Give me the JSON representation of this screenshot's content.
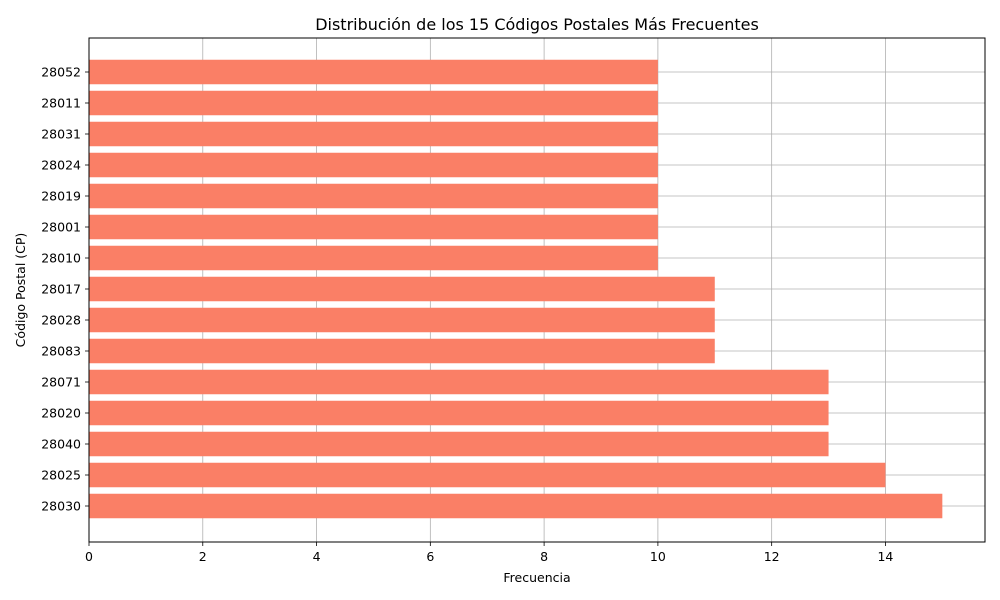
{
  "chart_data": {
    "type": "bar",
    "orientation": "horizontal",
    "title": "Distribución de los 15 Códigos Postales Más Frecuentes",
    "xlabel": "Frecuencia",
    "ylabel": "Código Postal (CP)",
    "categories": [
      "28030",
      "28025",
      "28040",
      "28020",
      "28071",
      "28083",
      "28028",
      "28017",
      "28010",
      "28001",
      "28019",
      "28024",
      "28031",
      "28011",
      "28052"
    ],
    "values": [
      15,
      14,
      13,
      13,
      13,
      11,
      11,
      11,
      10,
      10,
      10,
      10,
      10,
      10,
      10
    ],
    "xlim": [
      0,
      15.75
    ],
    "xticks": [
      "0",
      "2",
      "4",
      "6",
      "8",
      "10",
      "12",
      "14"
    ],
    "grid": true,
    "bar_color": "#fa7f66",
    "grid_color": "#b0b0b0"
  }
}
